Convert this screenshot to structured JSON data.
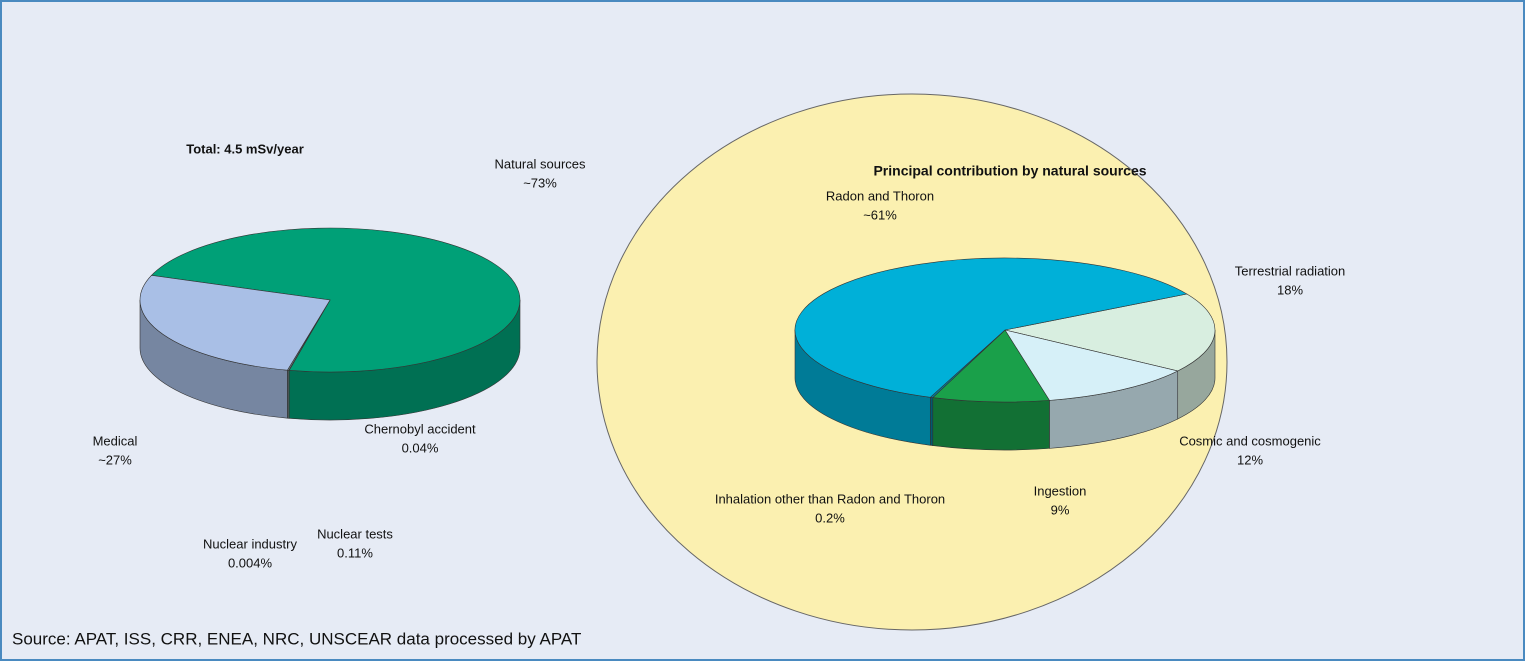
{
  "chart_data": [
    {
      "type": "pie3d",
      "title": "Total: 4.5 mSv/year",
      "categories": [
        "Natural sources",
        "Chernobyl accident",
        "Nuclear tests",
        "Nuclear industry",
        "Medical"
      ],
      "values": [
        73,
        0.04,
        0.11,
        0.004,
        27
      ],
      "value_labels": [
        "~73%",
        "0.04%",
        "0.11%",
        "0.004%",
        "~27%"
      ],
      "colors": [
        "#00a077",
        "#b0b090",
        "#8fb4b4",
        "#5a1a5a",
        "#a9bfe6"
      ]
    },
    {
      "type": "pie3d",
      "title": "Principal contribution by natural sources",
      "categories": [
        "Terrestrial radiation",
        "Cosmic and cosmogenic",
        "Ingestion",
        "Inhalation other than Radon and Thoron",
        "Radon and Thoron"
      ],
      "values": [
        18,
        12,
        9,
        0.2,
        61
      ],
      "value_labels": [
        "18%",
        "12%",
        "9%",
        "0.2%",
        "~61%"
      ],
      "colors": [
        "#d8eee0",
        "#d6f0f8",
        "#1aa04a",
        "#0080a0",
        "#00b0d8"
      ]
    }
  ],
  "source": "Source: APAT, ISS, CRR, ENEA, NRC, UNSCEAR data processed by APAT"
}
